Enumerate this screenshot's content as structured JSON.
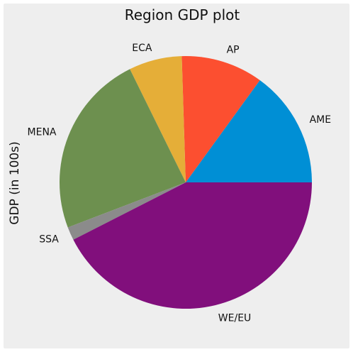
{
  "chart_data": {
    "type": "pie",
    "title": "Region GDP plot",
    "ylabel": "GDP (in 100s)",
    "xlabel": "",
    "start_angle_deg": 0,
    "direction": "counterclockwise",
    "slices": [
      {
        "label": "AME",
        "value": 15.0,
        "color": "#008fd5"
      },
      {
        "label": "AP",
        "value": 10.5,
        "color": "#fc4f30"
      },
      {
        "label": "ECA",
        "value": 6.8,
        "color": "#e5ae38"
      },
      {
        "label": "MENA",
        "value": 23.5,
        "color": "#6d904f"
      },
      {
        "label": "SSA",
        "value": 1.7,
        "color": "#8b8b8b"
      },
      {
        "label": "WE/EU",
        "value": 42.5,
        "color": "#810f7c"
      }
    ]
  }
}
